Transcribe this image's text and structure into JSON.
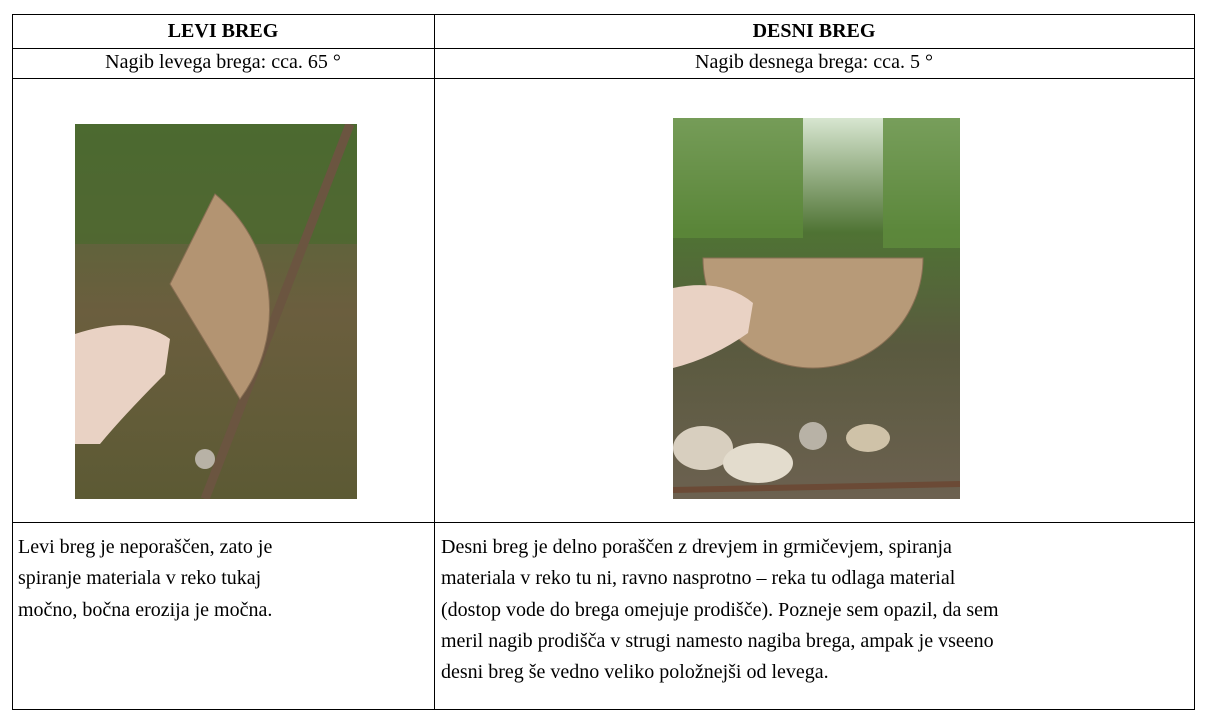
{
  "header": {
    "left": "LEVI BREG",
    "right": "DESNI BREG"
  },
  "slope": {
    "left": "Nagib levega brega: cca. 65 °",
    "right": "Nagib desnega brega: cca. 5 °"
  },
  "description": {
    "left": [
      "Levi breg je neporaščen, zato je",
      "spiranje materiala v reko tukaj",
      "močno, bočna erozija je močna."
    ],
    "right": [
      "Desni breg je delno poraščen z drevjem in grmičevjem, spiranja",
      "materiala v reko tu ni, ravno nasprotno – reka tu odlaga material",
      "(dostop vode do brega omejuje prodišče). Pozneje sem opazil, da sem",
      "meril nagib prodišča v strugi namesto nagiba brega, ampak je vseeno",
      "desni breg še vedno veliko položnejši od levega."
    ]
  }
}
